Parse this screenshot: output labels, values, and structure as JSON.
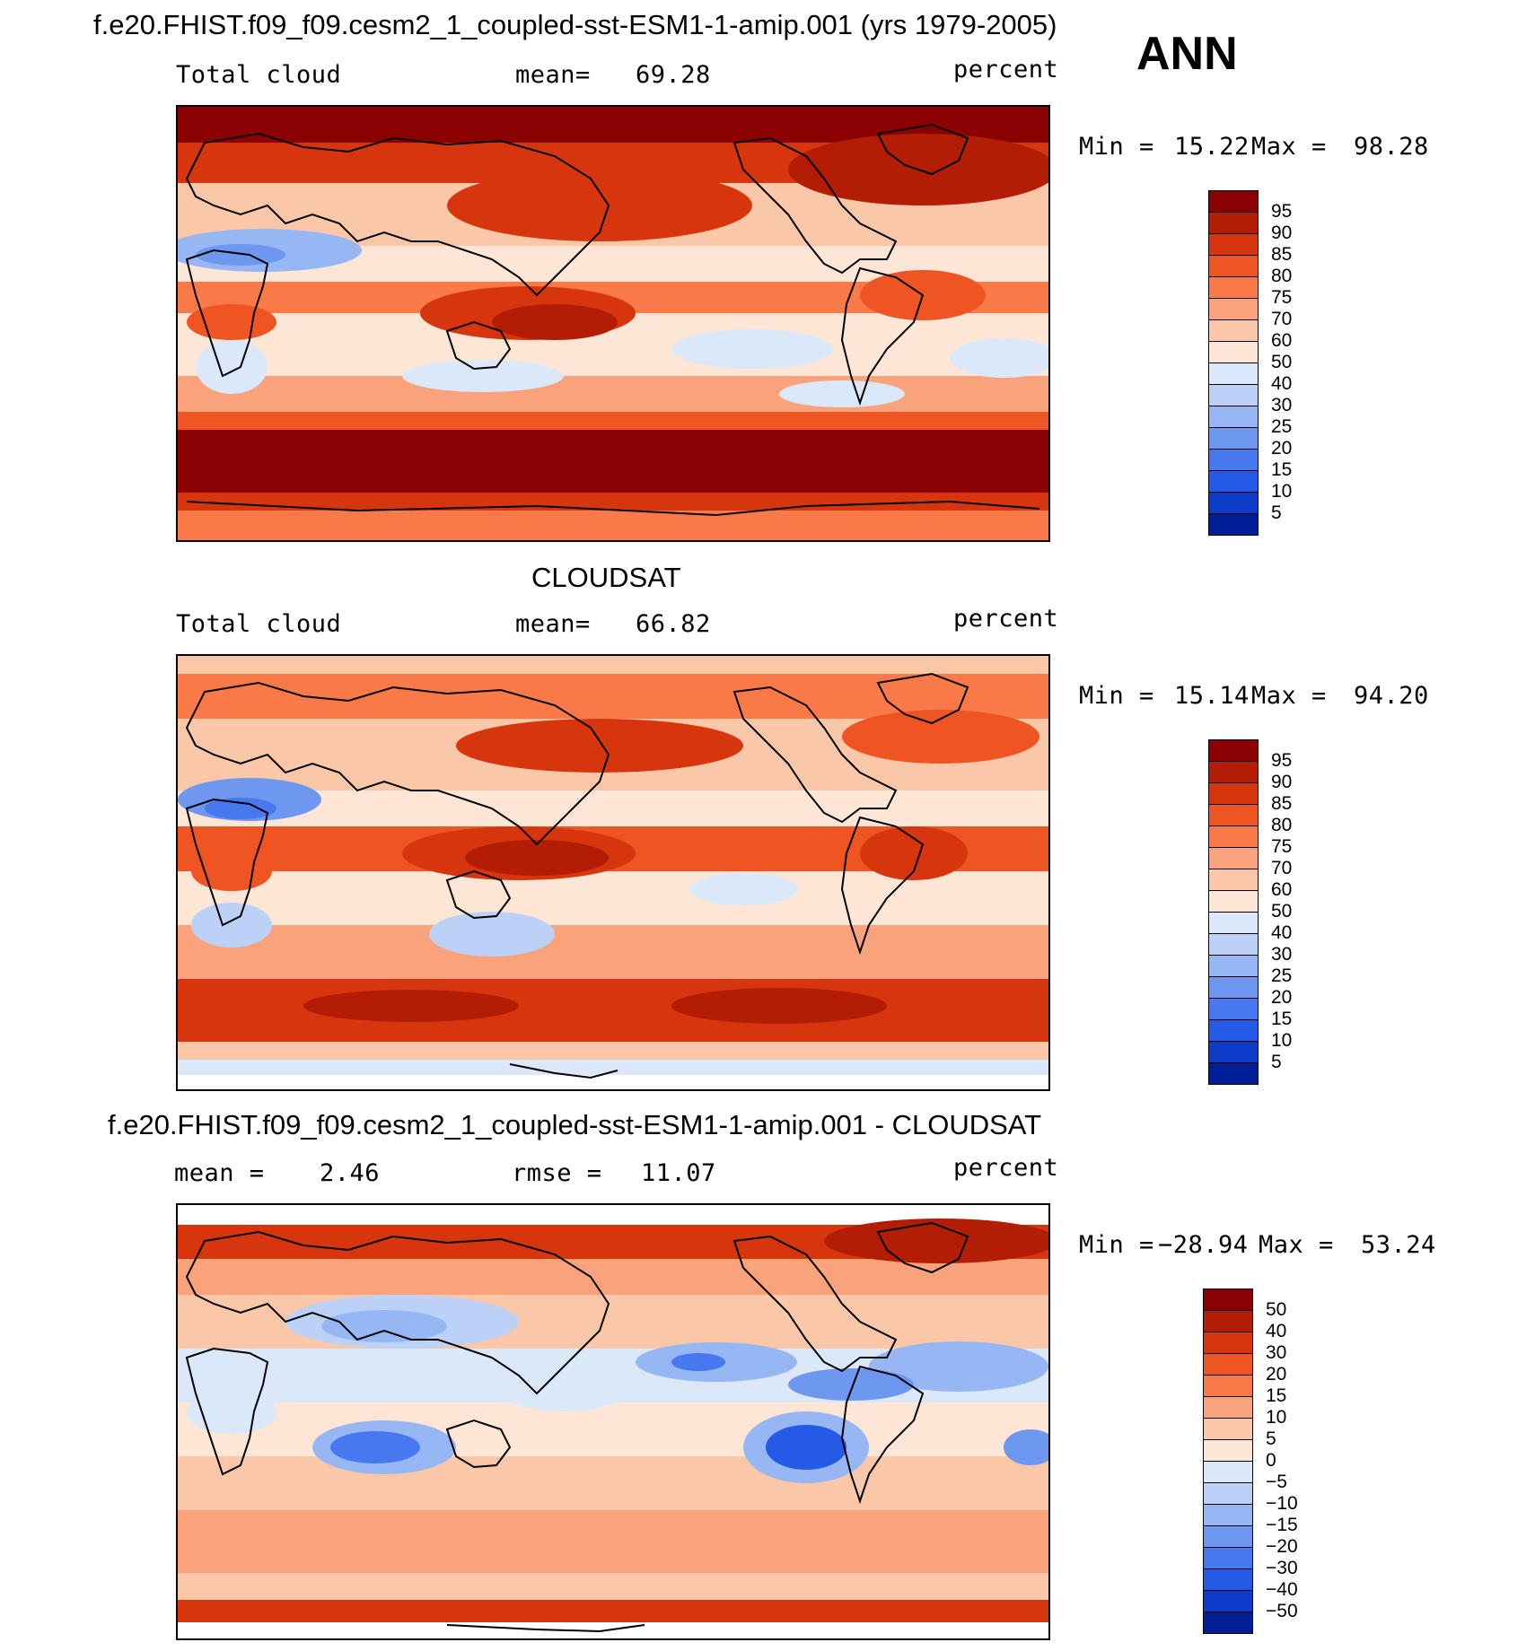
{
  "figure": {
    "main_title": "f.e20.FHIST.f09_f09.cesm2_1_coupled-sst-ESM1-1-amip.001 (yrs 1979-2005)",
    "season": "ANN",
    "units": "percent"
  },
  "panels": [
    {
      "id": "model",
      "variable": "Total cloud",
      "mean_label": "mean=",
      "mean_value": "69.28",
      "units": "percent",
      "min_label": "Min =",
      "min_value": "15.22",
      "max_label": "Max =",
      "max_value": "98.28"
    },
    {
      "id": "obs",
      "heading": "CLOUDSAT",
      "variable": "Total cloud",
      "mean_label": "mean=",
      "mean_value": "66.82",
      "units": "percent",
      "min_label": "Min =",
      "min_value": "15.14",
      "max_label": "Max =",
      "max_value": "94.20"
    },
    {
      "id": "diff",
      "heading": "f.e20.FHIST.f09_f09.cesm2_1_coupled-sst-ESM1-1-amip.001 - CLOUDSAT",
      "mean_label": "mean =",
      "mean_value": "2.46",
      "rmse_label": "rmse =",
      "rmse_value": "11.07",
      "units": "percent",
      "min_label": "Min =",
      "min_value": "−28.94",
      "max_label": "Max =",
      "max_value": "53.24"
    }
  ],
  "colorbars": {
    "cloud_levels": [
      "95",
      "90",
      "85",
      "80",
      "75",
      "70",
      "60",
      "50",
      "40",
      "30",
      "25",
      "20",
      "15",
      "10",
      "5"
    ],
    "cloud_colors": [
      "#8b0000",
      "#b31d06",
      "#d7350d",
      "#ef5423",
      "#f97a48",
      "#f9a27c",
      "#fbc7a9",
      "#fde6d6",
      "#dbe8f9",
      "#bbd2f6",
      "#96b7f3",
      "#6e97f0",
      "#4878ef",
      "#245ae6",
      "#0c3cc8",
      "#001f96"
    ],
    "diff_levels": [
      "50",
      "40",
      "30",
      "20",
      "15",
      "10",
      "5",
      "0",
      "−5",
      "−10",
      "−15",
      "−20",
      "−30",
      "−40",
      "−50"
    ],
    "diff_colors": [
      "#8b0000",
      "#b31d06",
      "#d7350d",
      "#ef5423",
      "#f97a48",
      "#f9a27c",
      "#fbc7a9",
      "#fde6d6",
      "#dbe8f9",
      "#bbd2f6",
      "#96b7f3",
      "#6e97f0",
      "#4878ef",
      "#245ae6",
      "#0c3cc8",
      "#001f96"
    ]
  }
}
